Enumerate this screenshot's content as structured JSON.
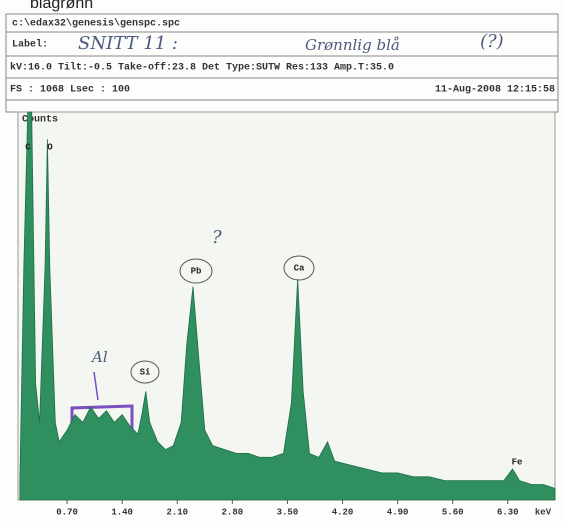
{
  "header": {
    "note": "blagrønn",
    "path": "c:\\edax32\\genesis\\genspc.spc",
    "label_key": "Label:",
    "label_hand": "SNITT 11 :",
    "label_hand2": "Grønnlig blå",
    "label_hand3": "(?)",
    "params": "kV:16.0 Tilt:-0.5 Take-off:23.8  Det Type:SUTW Res:133 Amp.T:35.0",
    "fs": "FS : 1068  Lsec : 100",
    "date": "11-Aug-2008 12:15:58"
  },
  "chart_data": {
    "type": "area",
    "y_label": "Counts",
    "x_label": "keV",
    "color": "#2f8f5f",
    "peak_labels": [
      "C",
      "O",
      "Si",
      "Pb",
      "Ca",
      "Fe"
    ],
    "hand_notes": [
      "Al",
      "?"
    ],
    "x": [
      0.1,
      0.15,
      0.2,
      0.25,
      0.3,
      0.35,
      0.42,
      0.45,
      0.48,
      0.55,
      0.6,
      0.7,
      0.8,
      0.9,
      1.0,
      1.1,
      1.2,
      1.3,
      1.4,
      1.5,
      1.6,
      1.65,
      1.7,
      1.75,
      1.85,
      1.95,
      2.05,
      2.15,
      2.22,
      2.3,
      2.38,
      2.45,
      2.55,
      2.7,
      2.85,
      3.0,
      3.15,
      3.3,
      3.45,
      3.55,
      3.63,
      3.7,
      3.78,
      3.9,
      4.01,
      4.1,
      4.3,
      4.5,
      4.7,
      4.9,
      5.1,
      5.3,
      5.5,
      5.7,
      5.9,
      6.1,
      6.25,
      6.36,
      6.45,
      6.6,
      6.75,
      6.9
    ],
    "values": [
      5,
      60,
      100,
      100,
      30,
      20,
      60,
      93,
      60,
      20,
      15,
      18,
      22,
      20,
      24,
      21,
      23,
      20,
      22,
      19,
      17,
      22,
      28,
      20,
      15,
      13,
      14,
      20,
      40,
      55,
      35,
      18,
      14,
      13,
      12,
      12,
      11,
      11,
      12,
      25,
      57,
      28,
      12,
      11,
      15,
      10,
      9,
      8,
      7,
      7,
      6,
      6,
      5,
      5,
      5,
      5,
      5,
      8,
      5,
      4,
      4,
      3
    ],
    "xlim": [
      0,
      6.9
    ],
    "ylim": [
      0,
      100
    ],
    "xticks": [
      {
        "value": 0.7,
        "label": "0.70"
      },
      {
        "value": 1.4,
        "label": "1.40"
      },
      {
        "value": 2.1,
        "label": "2.10"
      },
      {
        "value": 2.8,
        "label": "2.80"
      },
      {
        "value": 3.5,
        "label": "3.50"
      },
      {
        "value": 4.2,
        "label": "4.20"
      },
      {
        "value": 4.9,
        "label": "4.90"
      },
      {
        "value": 5.6,
        "label": "5.60"
      },
      {
        "value": 6.3,
        "label": "6.30"
      }
    ]
  }
}
